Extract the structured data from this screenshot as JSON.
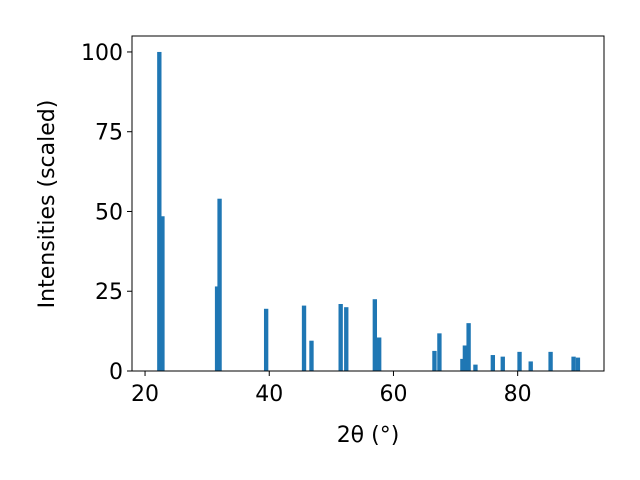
{
  "chart_data": {
    "type": "bar",
    "x_label": "2θ (°)",
    "y_label": "Intensities (scaled)",
    "x": [
      22.3,
      22.8,
      31.6,
      32.0,
      39.5,
      45.6,
      46.8,
      51.5,
      52.4,
      57.0,
      57.7,
      66.6,
      67.4,
      71.1,
      71.5,
      72.1,
      73.2,
      76.0,
      77.6,
      80.3,
      82.1,
      85.3,
      89.0,
      89.7
    ],
    "values": [
      100,
      48.5,
      26.5,
      54,
      19.5,
      20.5,
      9.5,
      21,
      20,
      22.5,
      10.5,
      6.3,
      11.8,
      3.8,
      8,
      15,
      2,
      5,
      4.5,
      6,
      3,
      6,
      4.5,
      4.2
    ],
    "color": "#1f77b4",
    "xlim": [
      17.9,
      93.9
    ],
    "xticks": [
      20,
      40,
      60,
      80
    ],
    "ylim": [
      0,
      105
    ],
    "yticks": [
      0,
      25,
      50,
      75,
      100
    ]
  }
}
